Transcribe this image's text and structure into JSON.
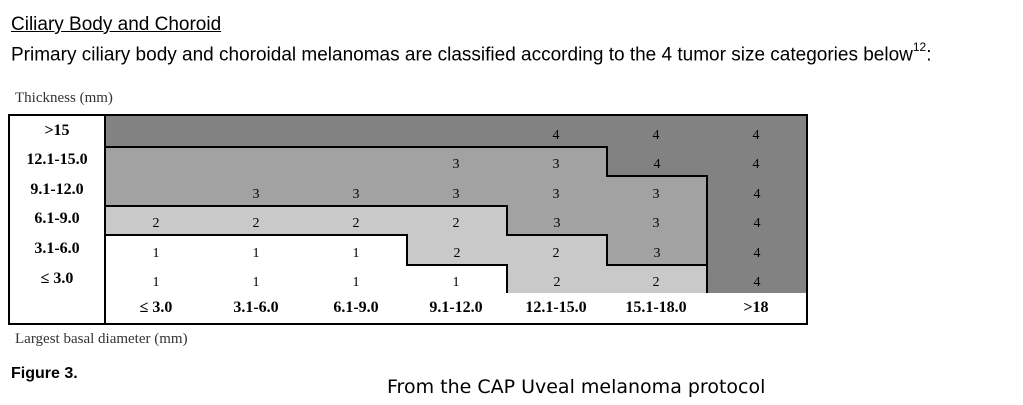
{
  "heading": {
    "title": "Ciliary Body and Choroid",
    "intro": "Primary ciliary body and choroidal melanomas are classified according to the 4 tumor size categories below",
    "intro_ref": "12",
    "intro_end": ":"
  },
  "figure": {
    "y_axis_title": "Thickness (mm)",
    "x_axis_title": "Largest basal diameter (mm)",
    "label": "Figure 3.",
    "source": "From the CAP Uveal melanoma protocol"
  },
  "colors": {
    "category_1": "#ffffff",
    "category_2": "#c9c9c9",
    "category_3": "#a2a2a2",
    "category_4": "#828282"
  },
  "chart_data": {
    "type": "table",
    "row_labels": [
      ">15",
      "12.1-15.0",
      "9.1-12.0",
      "6.1-9.0",
      "3.1-6.0",
      "≤ 3.0"
    ],
    "col_labels": [
      "≤ 3.0",
      "3.1-6.0",
      "6.1-9.0",
      "9.1-12.0",
      "12.1-15.0",
      "15.1-18.0",
      ">18"
    ],
    "categories": [
      [
        4,
        4,
        4,
        4,
        4,
        4,
        4
      ],
      [
        3,
        3,
        3,
        3,
        3,
        4,
        4
      ],
      [
        3,
        3,
        3,
        3,
        3,
        3,
        4
      ],
      [
        2,
        2,
        2,
        2,
        3,
        3,
        4
      ],
      [
        1,
        1,
        1,
        2,
        2,
        3,
        4
      ],
      [
        1,
        1,
        1,
        1,
        2,
        2,
        4
      ]
    ],
    "cell_text": [
      [
        "",
        "",
        "",
        "",
        "4",
        "4",
        "4"
      ],
      [
        "",
        "",
        "",
        "3",
        "3",
        "4",
        "4"
      ],
      [
        "",
        "3",
        "3",
        "3",
        "3",
        "3",
        "4"
      ],
      [
        "2",
        "2",
        "2",
        "2",
        "3",
        "3",
        "4"
      ],
      [
        "1",
        "1",
        "1",
        "2",
        "2",
        "3",
        "4"
      ],
      [
        "1",
        "1",
        "1",
        "1",
        "2",
        "2",
        "4"
      ]
    ]
  }
}
